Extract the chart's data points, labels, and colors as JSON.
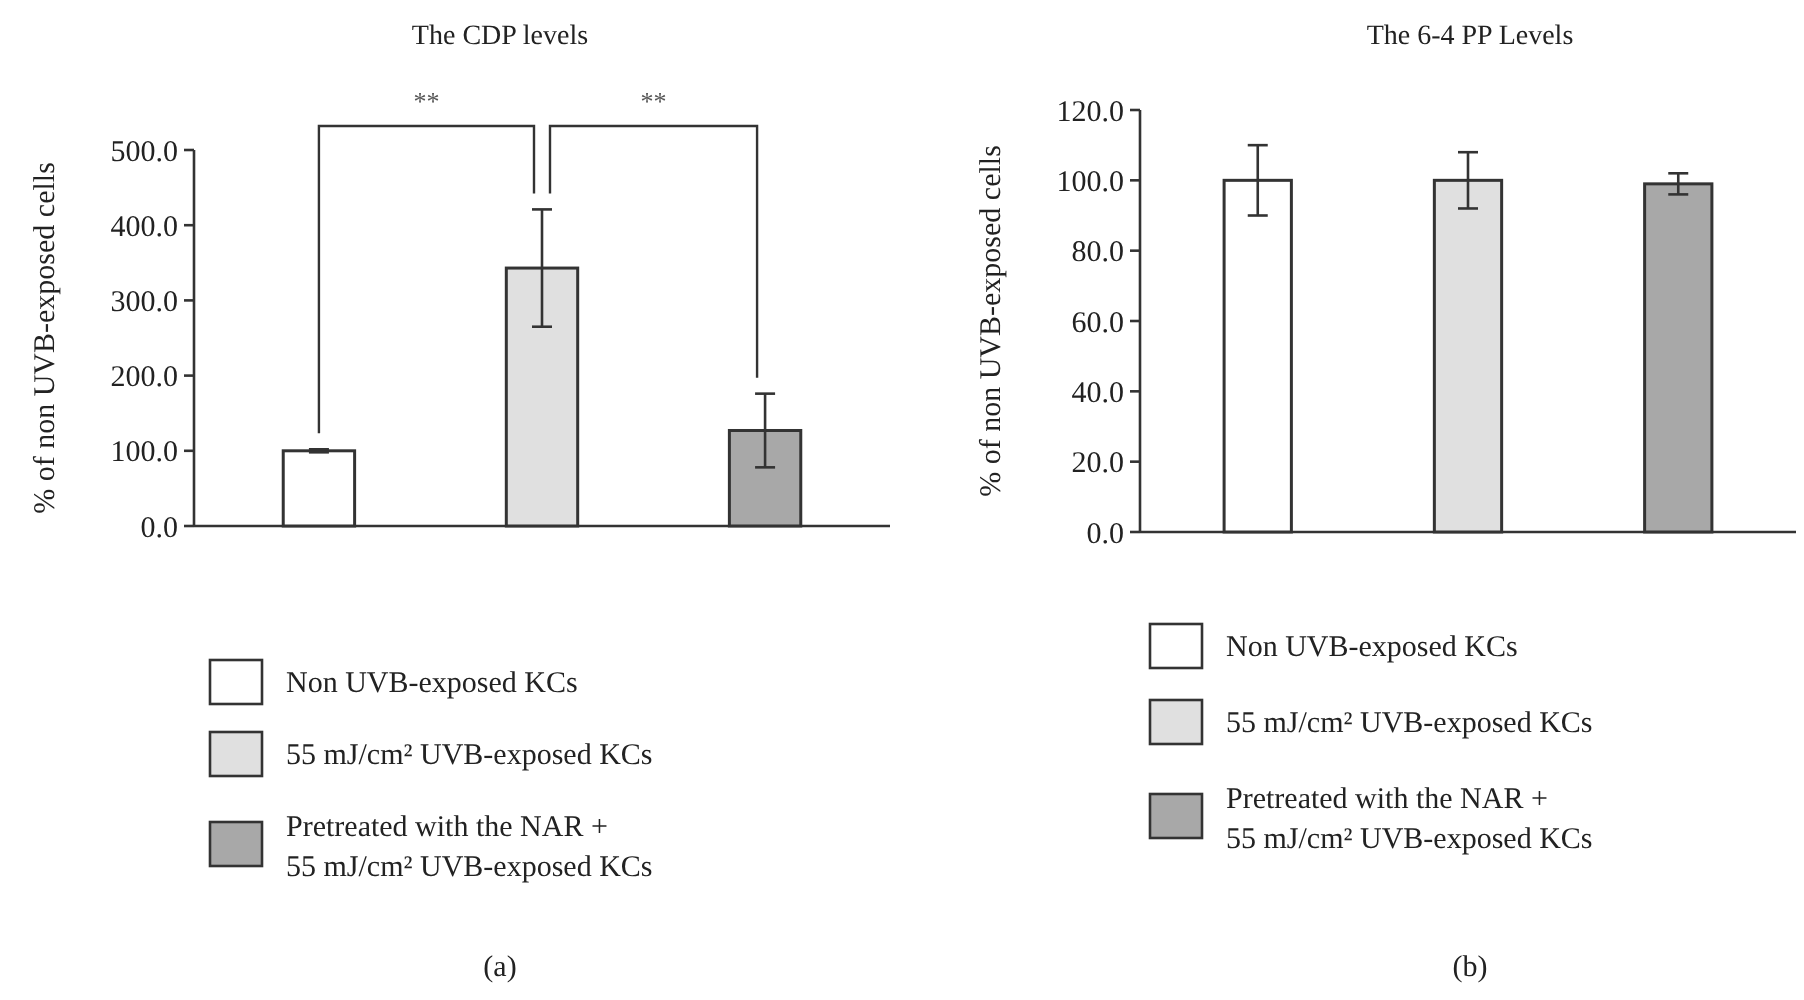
{
  "chart_data": [
    {
      "type": "bar",
      "title": "The CDP levels",
      "ylabel": "% of non UVB-exposed cells",
      "xlabel": "(a)",
      "categories": [
        null,
        null,
        null
      ],
      "series": [
        {
          "name": "Non UVB-exposed KCs",
          "color": "#ffffff",
          "values": [
            100,
            null,
            null
          ],
          "errors": [
            2,
            null,
            null
          ]
        },
        {
          "name": "55 mJ/cm² UVB-exposed KCs",
          "color": "#e0e0e0",
          "values": [
            null,
            343,
            null
          ],
          "errors": [
            null,
            78,
            null
          ]
        },
        {
          "name": "Pretreated with the NAR + 55 mJ/cm² UVB-exposed KCs",
          "color": "#a8a8a8",
          "values": [
            null,
            null,
            127
          ],
          "errors": [
            null,
            null,
            49
          ]
        }
      ],
      "ylim": [
        0,
        500
      ],
      "yticks": [
        {
          "value": 0,
          "label": "0.0"
        },
        {
          "value": 100,
          "label": "100.0"
        },
        {
          "value": 200,
          "label": "200.0"
        },
        {
          "value": 300,
          "label": "300.0"
        },
        {
          "value": 400,
          "label": "400.0"
        },
        {
          "value": 500,
          "label": "500.0"
        }
      ],
      "annotations": [
        "**",
        "**"
      ],
      "legend": "bottom",
      "grid": false
    },
    {
      "type": "bar",
      "title": "The 6-4 PP Levels",
      "ylabel": "% of non UVB-exposed cells",
      "xlabel": "(b)",
      "categories": [
        null,
        null,
        null
      ],
      "series": [
        {
          "name": "Non UVB-exposed KCs",
          "color": "#ffffff",
          "values": [
            100,
            null,
            null
          ],
          "errors": [
            10,
            null,
            null
          ]
        },
        {
          "name": "55 mJ/cm² UVB-exposed KCs",
          "color": "#e0e0e0",
          "values": [
            null,
            100,
            null
          ],
          "errors": [
            null,
            8,
            null
          ]
        },
        {
          "name": "Pretreated with the NAR + 55 mJ/cm² UVB-exposed KCs",
          "color": "#a8a8a8",
          "values": [
            null,
            null,
            99
          ],
          "errors": [
            null,
            null,
            3
          ]
        }
      ],
      "ylim": [
        0,
        120
      ],
      "yticks": [
        {
          "value": 0,
          "label": "0.0"
        },
        {
          "value": 20,
          "label": "20.0"
        },
        {
          "value": 40,
          "label": "40.0"
        },
        {
          "value": 60,
          "label": "60.0"
        },
        {
          "value": 80,
          "label": "80.0"
        },
        {
          "value": 100,
          "label": "100.0"
        },
        {
          "value": 120,
          "label": "120.0"
        }
      ],
      "legend": "bottom",
      "grid": false
    }
  ]
}
